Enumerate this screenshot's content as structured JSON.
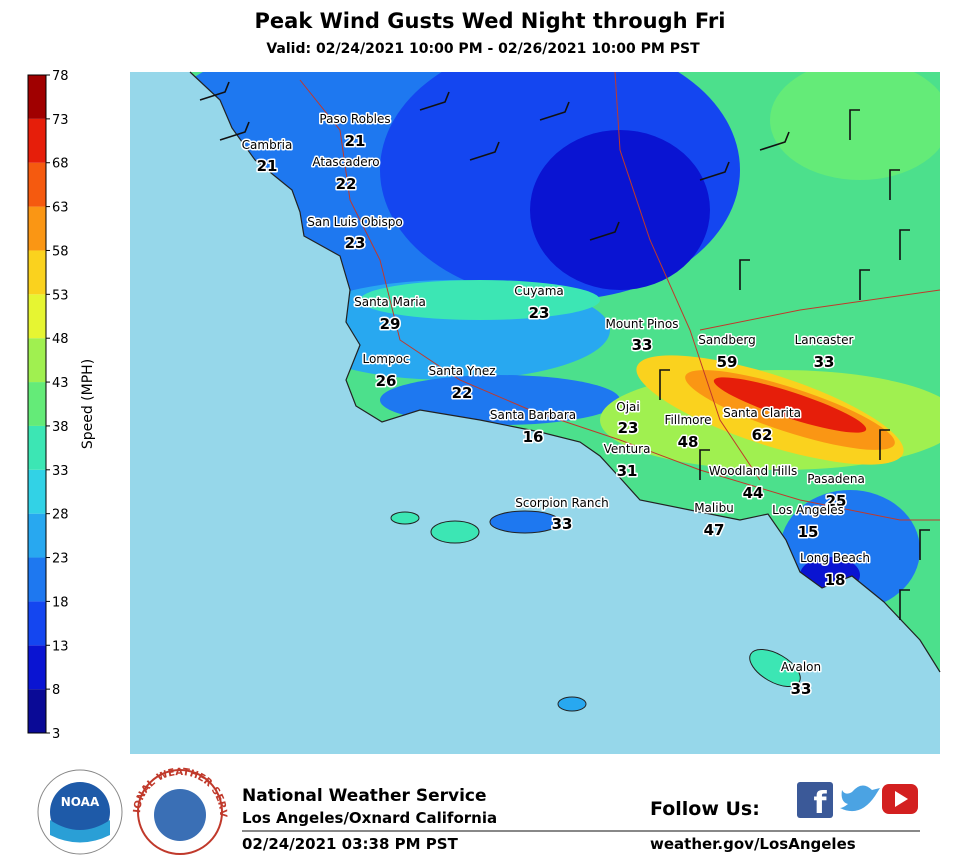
{
  "header": {
    "title": "Peak Wind Gusts Wed Night through Fri",
    "valid": "Valid: 02/24/2021 10:00 PM - 02/26/2021 10:00 PM PST"
  },
  "colorbar": {
    "label": "Speed (MPH)",
    "range": [
      3,
      78
    ],
    "ticks": [
      3,
      8,
      13,
      18,
      23,
      28,
      33,
      38,
      43,
      48,
      53,
      58,
      63,
      68,
      73,
      78
    ],
    "colors": [
      "#0a0a96",
      "#0a14d2",
      "#1446f0",
      "#1e78f0",
      "#28a8f0",
      "#32d2e6",
      "#3ce6b4",
      "#64eb78",
      "#a0f050",
      "#e6f532",
      "#fad21e",
      "#fa9614",
      "#f55a0f",
      "#e61e0a",
      "#a00000"
    ]
  },
  "locations": [
    {
      "name": "Paso Robles",
      "value": 21
    },
    {
      "name": "Cambria",
      "value": 21
    },
    {
      "name": "Atascadero",
      "value": 22
    },
    {
      "name": "San Luis Obispo",
      "value": 23
    },
    {
      "name": "Cuyama",
      "value": 23
    },
    {
      "name": "Santa Maria",
      "value": 29
    },
    {
      "name": "Mount Pinos",
      "value": 33
    },
    {
      "name": "Sandberg",
      "value": 59
    },
    {
      "name": "Lancaster",
      "value": 33
    },
    {
      "name": "Lompoc",
      "value": 26
    },
    {
      "name": "Santa Ynez",
      "value": 22
    },
    {
      "name": "Ojai",
      "value": 23
    },
    {
      "name": "Santa Barbara",
      "value": 16
    },
    {
      "name": "Fillmore",
      "value": 48
    },
    {
      "name": "Santa Clarita",
      "value": 62
    },
    {
      "name": "Ventura",
      "value": 31
    },
    {
      "name": "Woodland Hills",
      "value": 44
    },
    {
      "name": "Pasadena",
      "value": 25
    },
    {
      "name": "Scorpion Ranch",
      "value": 33
    },
    {
      "name": "Malibu",
      "value": 47
    },
    {
      "name": "Los Angeles",
      "value": 15
    },
    {
      "name": "Long Beach",
      "value": 18
    },
    {
      "name": "Avalon",
      "value": 33
    }
  ],
  "footer": {
    "office": "National Weather Service",
    "location": "Los Angeles/Oxnard California",
    "issued": "02/24/2021 03:38 PM PST",
    "follow": "Follow Us:",
    "url": "weather.gov/LosAngeles",
    "noaa_logo": "NOAA",
    "nws_logo": "NATIONAL WEATHER SERVICE"
  }
}
